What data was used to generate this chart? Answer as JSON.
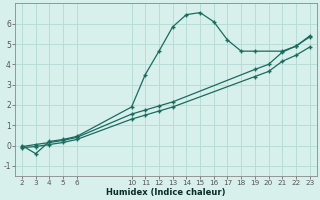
{
  "xlabel": "Humidex (Indice chaleur)",
  "bg_color": "#d8f0ec",
  "grid_color": "#b8ddd8",
  "line_color": "#1a6b5e",
  "xlim": [
    1.5,
    23.5
  ],
  "ylim": [
    -1.5,
    7.0
  ],
  "xticks": [
    2,
    3,
    4,
    5,
    6,
    10,
    11,
    12,
    13,
    14,
    15,
    16,
    17,
    18,
    19,
    20,
    21,
    22,
    23
  ],
  "yticks": [
    -1,
    0,
    1,
    2,
    3,
    4,
    5,
    6
  ],
  "curve1_x": [
    2,
    3,
    4,
    5,
    6,
    10,
    11,
    12,
    13,
    14,
    15,
    16,
    17,
    18,
    19,
    21,
    22,
    23
  ],
  "curve1_y": [
    0.0,
    -0.4,
    0.2,
    0.3,
    0.45,
    1.9,
    3.5,
    4.65,
    5.85,
    6.45,
    6.55,
    6.1,
    5.2,
    4.65,
    4.65,
    4.65,
    4.9,
    5.4
  ],
  "line2_x": [
    2,
    3,
    4,
    5,
    6,
    10,
    11,
    12,
    13,
    19,
    20,
    21,
    22,
    23
  ],
  "line2_y": [
    -0.05,
    0.05,
    0.15,
    0.25,
    0.4,
    1.55,
    1.75,
    1.95,
    2.15,
    3.75,
    4.0,
    4.6,
    4.9,
    5.35
  ],
  "line3_x": [
    2,
    3,
    4,
    5,
    6,
    10,
    11,
    12,
    13,
    19,
    20,
    21,
    22,
    23
  ],
  "line3_y": [
    -0.1,
    -0.05,
    0.05,
    0.15,
    0.3,
    1.3,
    1.5,
    1.7,
    1.9,
    3.4,
    3.65,
    4.15,
    4.45,
    4.85
  ]
}
